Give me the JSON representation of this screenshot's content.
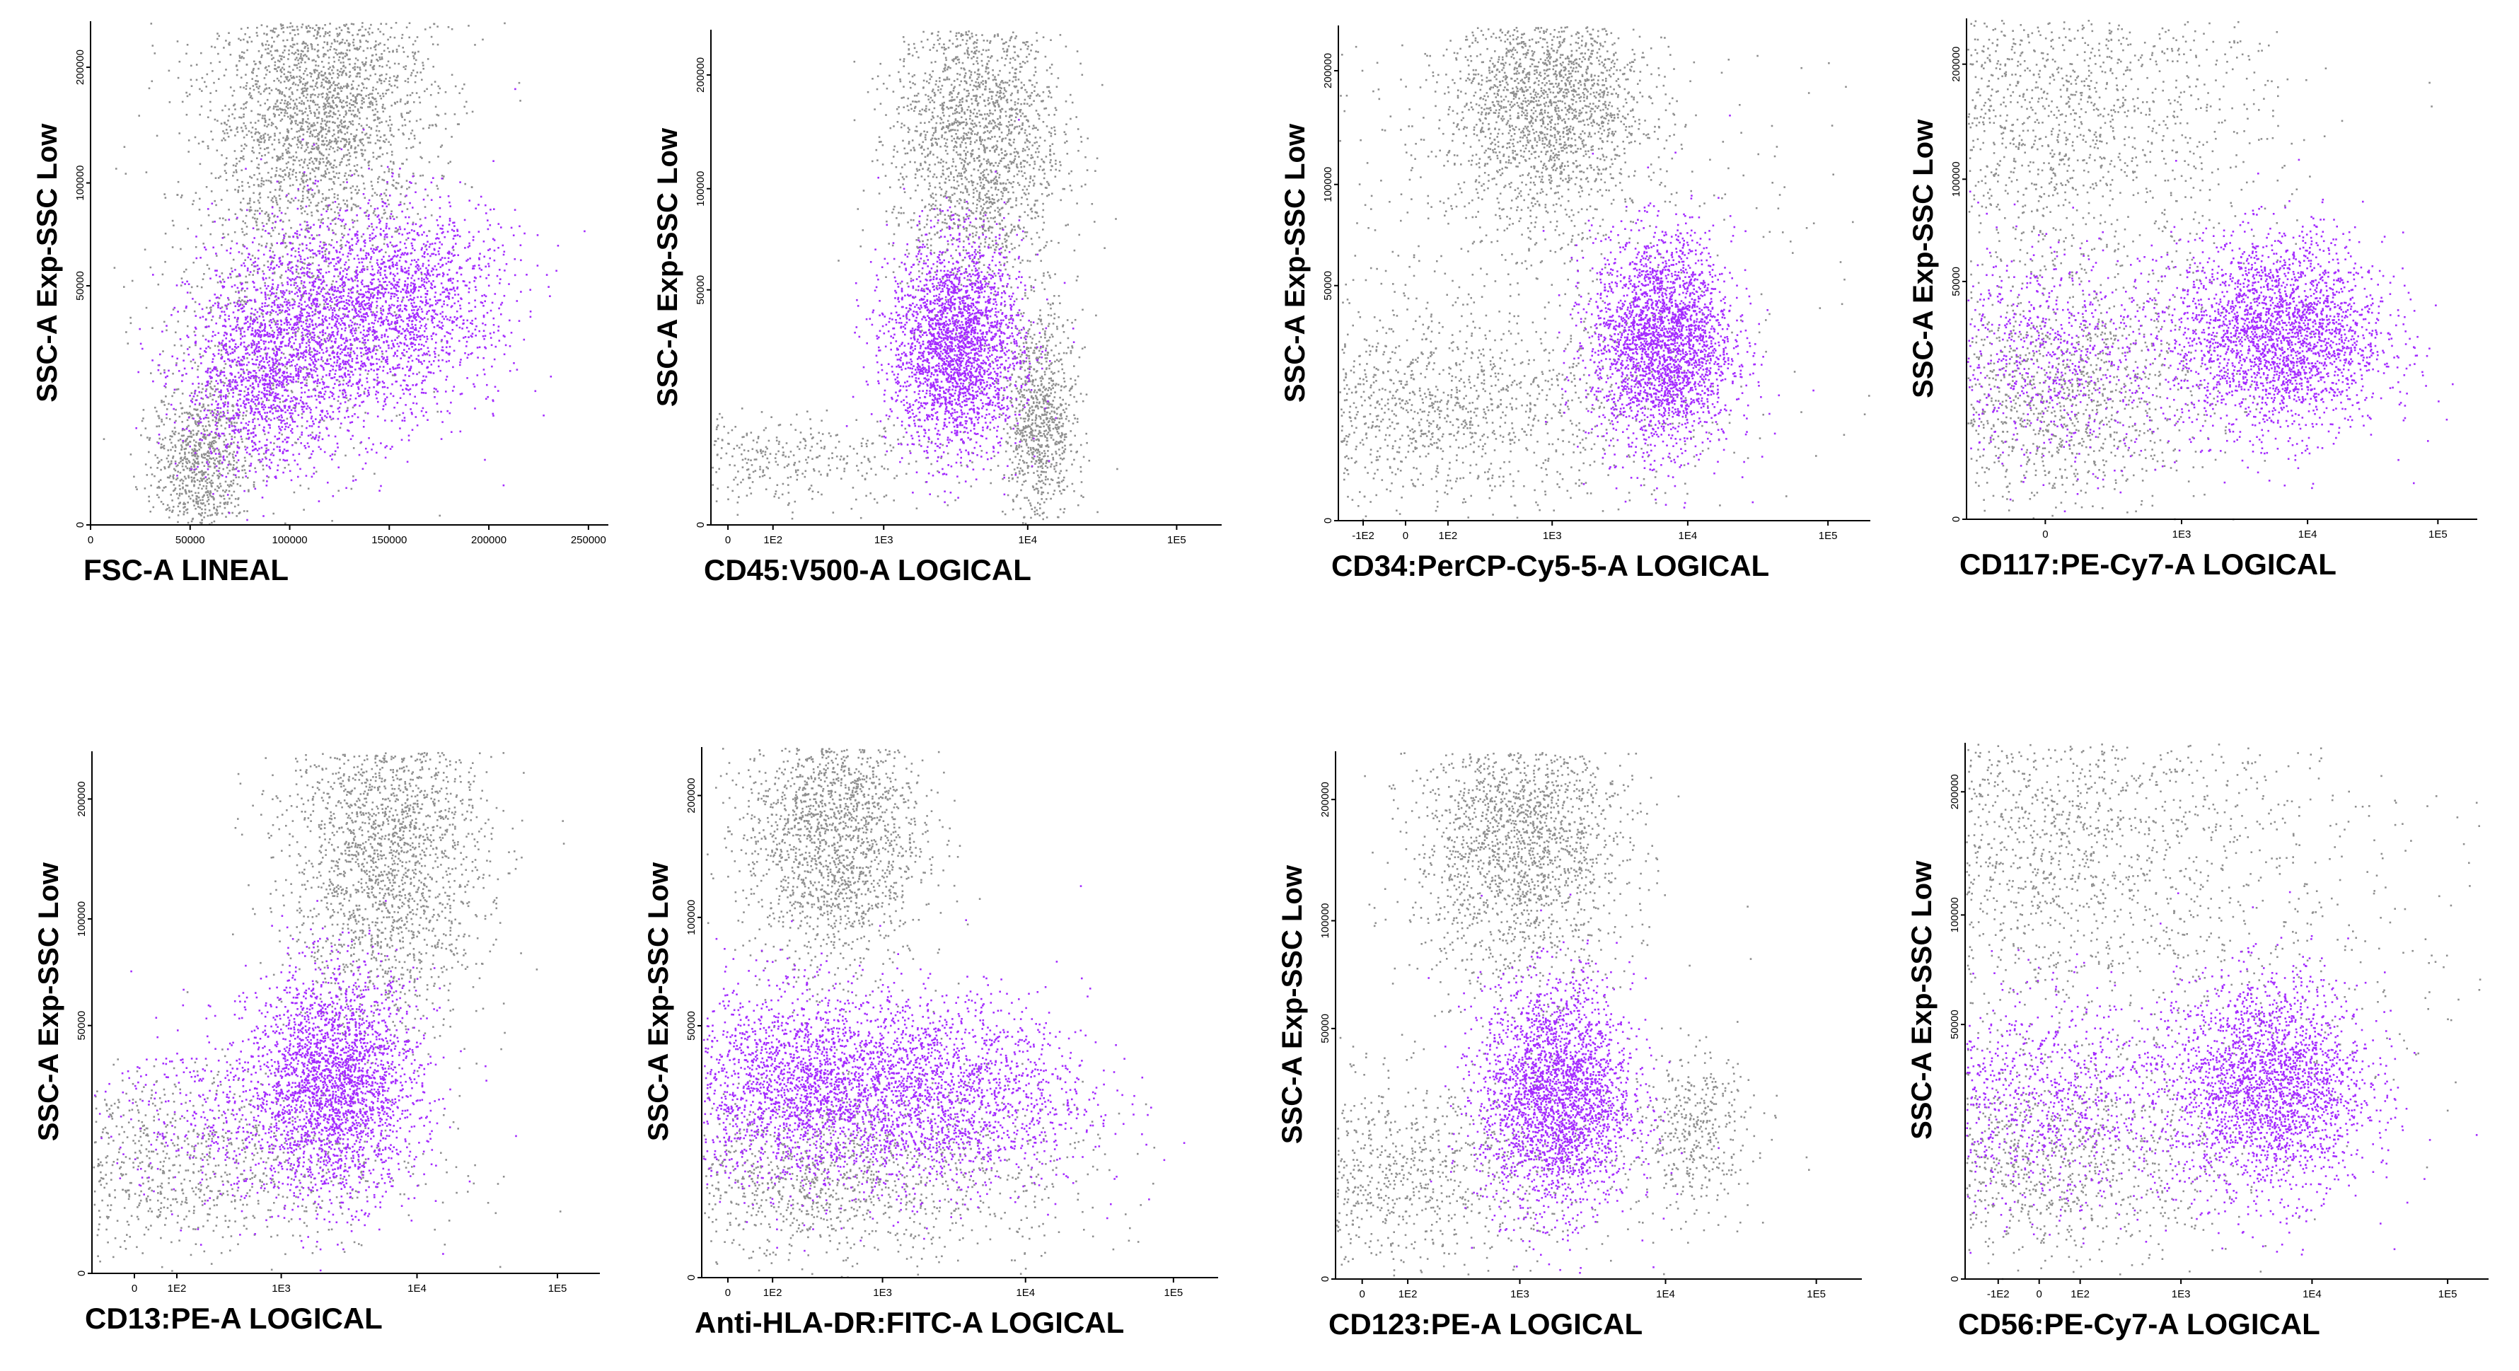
{
  "colors": {
    "background": "#ffffff",
    "dots_gray": "#8f8f8f",
    "dots_purple": "#a42bff",
    "axis": "#000000"
  },
  "chart_data": [
    {
      "type": "scatter",
      "xlabel": "FSC-A LINEAL",
      "ylabel": "SSC-A Exp-SSC Low",
      "x_scale": "linear",
      "xlim": [
        0,
        260000
      ],
      "xticks": [
        0,
        50000,
        100000,
        150000,
        200000,
        250000
      ],
      "xticklabels": [
        "0",
        "50000",
        "100000",
        "150000",
        "200000",
        "250000"
      ],
      "ylim_axis": "logicle",
      "yticks": [
        0,
        50000,
        100000,
        200000
      ],
      "yticklabels": [
        "0",
        "50000",
        "100000",
        "200000"
      ],
      "populations": [
        {
          "color": "gray",
          "clusters": [
            {
              "x": 115000,
              "y": 160000,
              "sx": 28000,
              "sy": 0.45,
              "n": 2400
            },
            {
              "x": 55000,
              "y": 8000,
              "sx": 12000,
              "sy": 0.25,
              "n": 800
            },
            {
              "x": 90000,
              "y": 40000,
              "sx": 30000,
              "sy": 0.6,
              "n": 700
            }
          ]
        },
        {
          "color": "purple",
          "clusters": [
            {
              "x": 125000,
              "y": 38000,
              "sx": 32000,
              "sy": 0.35,
              "n": 2200
            },
            {
              "x": 85000,
              "y": 22000,
              "sx": 20000,
              "sy": 0.3,
              "n": 1100
            },
            {
              "x": 165000,
              "y": 50000,
              "sx": 25000,
              "sy": 0.3,
              "n": 700
            }
          ]
        }
      ]
    },
    {
      "type": "scatter",
      "xlabel": "CD45:V500-A LOGICAL",
      "ylabel": "SSC-A Exp-SSC Low",
      "x_scale": "logicle",
      "xlim": [
        -30,
        200000
      ],
      "xticks": [
        0,
        100,
        1000,
        10000,
        100000
      ],
      "xticklabels": [
        "0",
        "1E2",
        "1E3",
        "1E4",
        "1E5"
      ],
      "ylim_axis": "logicle",
      "yticks": [
        0,
        50000,
        100000,
        200000
      ],
      "yticklabels": [
        "0",
        "50000",
        "100000",
        "200000"
      ],
      "populations": [
        {
          "color": "gray",
          "clusters": [
            {
              "x": 4500,
              "y": 140000,
              "sx": 0.28,
              "sy": 0.55,
              "n": 2100
            },
            {
              "x": 12000,
              "y": 15000,
              "sx": 0.12,
              "sy": 0.35,
              "n": 900
            },
            {
              "x": 40,
              "y": 8500,
              "sx": 0.7,
              "sy": 0.15,
              "n": 500
            }
          ]
        },
        {
          "color": "purple",
          "clusters": [
            {
              "x": 3200,
              "y": 32000,
              "sx": 0.22,
              "sy": 0.35,
              "n": 2600
            }
          ]
        }
      ]
    },
    {
      "type": "scatter",
      "xlabel": "CD34:PerCP-Cy5-5-A LOGICAL",
      "ylabel": "SSC-A Exp-SSC Low",
      "x_scale": "logicle",
      "xlim": [
        -200,
        200000
      ],
      "xticks": [
        -100,
        0,
        100,
        1000,
        10000,
        100000
      ],
      "xticklabels": [
        "-1E2",
        "0",
        "1E2",
        "1E3",
        "1E4",
        "1E5"
      ],
      "ylim_axis": "logicle",
      "yticks": [
        0,
        50000,
        100000,
        200000
      ],
      "yticklabels": [
        "0",
        "50000",
        "100000",
        "200000"
      ],
      "populations": [
        {
          "color": "gray",
          "clusters": [
            {
              "x": 900,
              "y": 170000,
              "sx": 0.35,
              "sy": 0.4,
              "n": 2000
            },
            {
              "x": 20,
              "y": 16000,
              "sx": 0.9,
              "sy": 0.3,
              "n": 1400
            },
            {
              "x": 300,
              "y": 60000,
              "sx": 1.2,
              "sy": 1.0,
              "n": 700
            }
          ]
        },
        {
          "color": "purple",
          "clusters": [
            {
              "x": 6500,
              "y": 32000,
              "sx": 0.25,
              "sy": 0.35,
              "n": 2700
            }
          ]
        }
      ]
    },
    {
      "type": "scatter",
      "xlabel": "CD117:PE-Cy7-A LOGICAL",
      "ylabel": "SSC-A Exp-SSC Low",
      "x_scale": "logicle",
      "xlim": [
        -300,
        200000
      ],
      "xticks": [
        0,
        1000,
        10000,
        100000
      ],
      "xticklabels": [
        "0",
        "1E3",
        "1E4",
        "1E5"
      ],
      "ylim_axis": "logicle",
      "yticks": [
        0,
        50000,
        100000,
        200000
      ],
      "yticklabels": [
        "0",
        "50000",
        "100000",
        "200000"
      ],
      "populations": [
        {
          "color": "gray",
          "clusters": [
            {
              "x": 20,
              "y": 150000,
              "sx": 0.8,
              "sy": 0.6,
              "n": 1800
            },
            {
              "x": 10,
              "y": 18000,
              "sx": 0.6,
              "sy": 0.35,
              "n": 1200
            }
          ]
        },
        {
          "color": "purple",
          "clusters": [
            {
              "x": 6000,
              "y": 33000,
              "sx": 0.4,
              "sy": 0.32,
              "n": 2600
            },
            {
              "x": 10,
              "y": 28000,
              "sx": 0.5,
              "sy": 0.35,
              "n": 800
            }
          ]
        }
      ]
    },
    {
      "type": "scatter",
      "xlabel": "CD13:PE-A LOGICAL",
      "ylabel": "SSC-A Exp-SSC Low",
      "x_scale": "logicle",
      "xlim": [
        -100,
        200000
      ],
      "xticks": [
        0,
        100,
        1000,
        10000,
        100000
      ],
      "xticklabels": [
        "0",
        "1E2",
        "1E3",
        "1E4",
        "1E5"
      ],
      "ylim_axis": "logicle",
      "yticks": [
        0,
        50000,
        100000,
        200000
      ],
      "yticklabels": [
        "0",
        "50000",
        "100000",
        "200000"
      ],
      "populations": [
        {
          "color": "gray",
          "clusters": [
            {
              "x": 6000,
              "y": 150000,
              "sx": 0.35,
              "sy": 0.55,
              "n": 2200
            },
            {
              "x": 10,
              "y": 15000,
              "sx": 0.9,
              "sy": 0.3,
              "n": 1300
            }
          ]
        },
        {
          "color": "purple",
          "clusters": [
            {
              "x": 2500,
              "y": 32000,
              "sx": 0.3,
              "sy": 0.35,
              "n": 2600
            },
            {
              "x": 300,
              "y": 25000,
              "sx": 0.4,
              "sy": 0.3,
              "n": 400
            }
          ]
        }
      ]
    },
    {
      "type": "scatter",
      "xlabel": "Anti-HLA-DR:FITC-A LOGICAL",
      "ylabel": "SSC-A Exp-SSC Low",
      "x_scale": "logicle",
      "xlim": [
        -50,
        200000
      ],
      "xticks": [
        0,
        100,
        1000,
        10000,
        100000
      ],
      "xticklabels": [
        "0",
        "1E2",
        "1E3",
        "1E4",
        "1E5"
      ],
      "ylim_axis": "logicle",
      "yticks": [
        0,
        50000,
        100000,
        200000
      ],
      "yticklabels": [
        "0",
        "50000",
        "100000",
        "200000"
      ],
      "populations": [
        {
          "color": "gray",
          "clusters": [
            {
              "x": 400,
              "y": 170000,
              "sx": 0.3,
              "sy": 0.45,
              "n": 2000
            },
            {
              "x": 150,
              "y": 12000,
              "sx": 0.5,
              "sy": 0.25,
              "n": 700
            },
            {
              "x": 2000,
              "y": 14000,
              "sx": 0.6,
              "sy": 0.3,
              "n": 600
            }
          ]
        },
        {
          "color": "purple",
          "clusters": [
            {
              "x": 200,
              "y": 32000,
              "sx": 0.45,
              "sy": 0.3,
              "n": 2000
            },
            {
              "x": 2500,
              "y": 30000,
              "sx": 0.5,
              "sy": 0.3,
              "n": 1800
            }
          ]
        }
      ]
    },
    {
      "type": "scatter",
      "xlabel": "CD123:PE-A LOGICAL",
      "ylabel": "SSC-A Exp-SSC Low",
      "x_scale": "logicle",
      "xlim": [
        -50,
        200000
      ],
      "xticks": [
        0,
        100,
        1000,
        10000,
        100000
      ],
      "xticklabels": [
        "0",
        "1E2",
        "1E3",
        "1E4",
        "1E5"
      ],
      "ylim_axis": "logicle",
      "yticks": [
        0,
        50000,
        100000,
        200000
      ],
      "yticklabels": [
        "0",
        "50000",
        "100000",
        "200000"
      ],
      "populations": [
        {
          "color": "gray",
          "clusters": [
            {
              "x": 1000,
              "y": 160000,
              "sx": 0.35,
              "sy": 0.45,
              "n": 2000
            },
            {
              "x": 20,
              "y": 14000,
              "sx": 0.8,
              "sy": 0.3,
              "n": 1300
            },
            {
              "x": 15000,
              "y": 22000,
              "sx": 0.2,
              "sy": 0.25,
              "n": 400
            }
          ]
        },
        {
          "color": "purple",
          "clusters": [
            {
              "x": 1800,
              "y": 30000,
              "sx": 0.25,
              "sy": 0.35,
              "n": 2700
            }
          ]
        }
      ]
    },
    {
      "type": "scatter",
      "xlabel": "CD56:PE-Cy7-A LOGICAL",
      "ylabel": "SSC-A Exp-SSC Low",
      "x_scale": "logicle",
      "xlim": [
        -250,
        200000
      ],
      "xticks": [
        -100,
        0,
        100,
        1000,
        10000,
        100000
      ],
      "xticklabels": [
        "-1E2",
        "0",
        "1E2",
        "1E3",
        "1E4",
        "1E5"
      ],
      "ylim_axis": "logicle",
      "yticks": [
        0,
        50000,
        100000,
        200000
      ],
      "yticklabels": [
        "0",
        "50000",
        "100000",
        "200000"
      ],
      "populations": [
        {
          "color": "gray",
          "clusters": [
            {
              "x": 0,
              "y": 160000,
              "sx": 0.9,
              "sy": 0.55,
              "n": 1800
            },
            {
              "x": 0,
              "y": 16000,
              "sx": 0.7,
              "sy": 0.3,
              "n": 1100
            },
            {
              "x": 3000,
              "y": 80000,
              "sx": 1.0,
              "sy": 0.7,
              "n": 400
            }
          ]
        },
        {
          "color": "purple",
          "clusters": [
            {
              "x": 5000,
              "y": 32000,
              "sx": 0.35,
              "sy": 0.33,
              "n": 2300
            },
            {
              "x": 10,
              "y": 28000,
              "sx": 0.7,
              "sy": 0.33,
              "n": 1200
            }
          ]
        }
      ]
    }
  ]
}
